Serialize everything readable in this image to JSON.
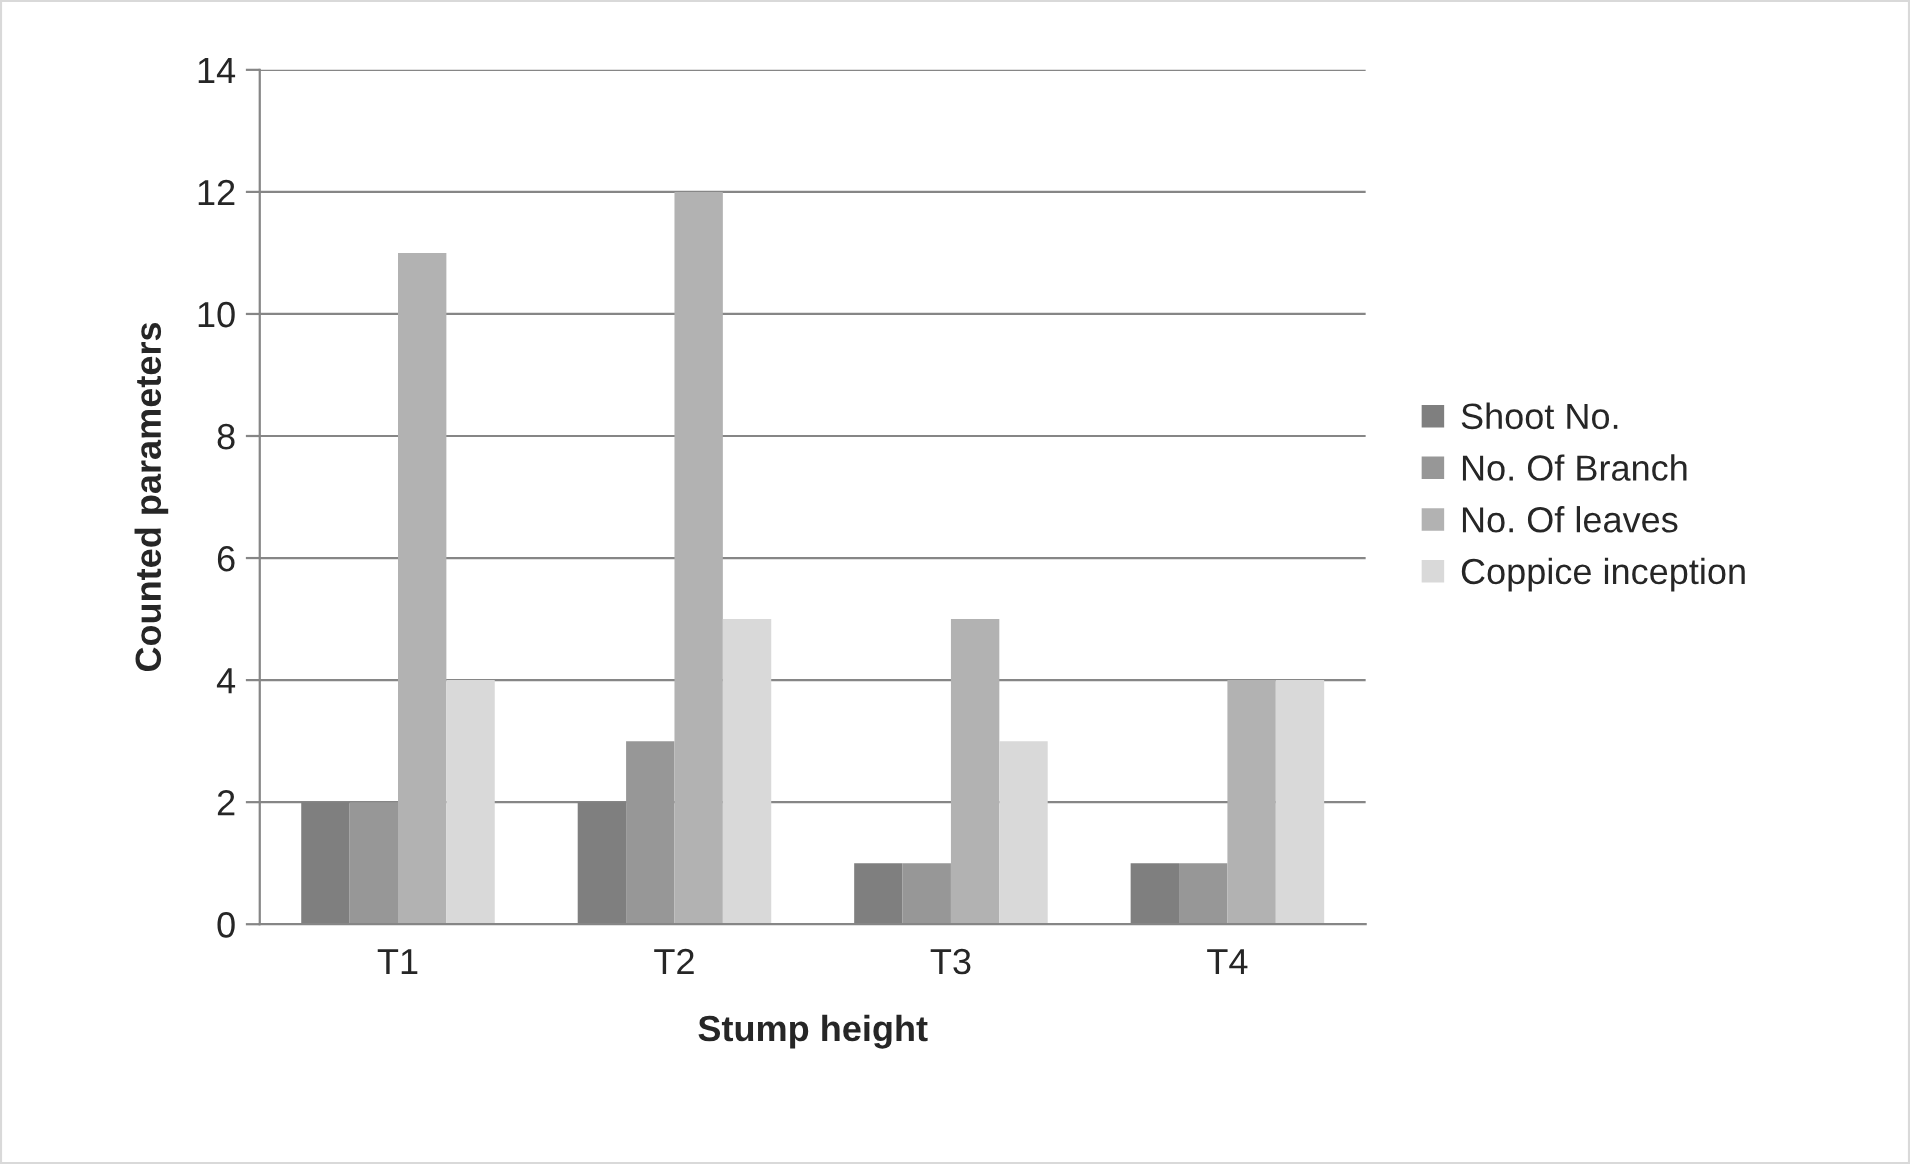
{
  "chart_data": {
    "type": "bar",
    "xlabel": "Stump height",
    "ylabel": "Counted parameters",
    "categories": [
      "T1",
      "T2",
      "T3",
      "T4"
    ],
    "series": [
      {
        "name": "Shoot No.",
        "color": "#7f7f7f",
        "values": [
          2,
          2,
          1,
          1
        ]
      },
      {
        "name": "No. Of Branch",
        "color": "#979797",
        "values": [
          2,
          3,
          1,
          1
        ]
      },
      {
        "name": "No. Of leaves",
        "color": "#b2b2b2",
        "values": [
          11,
          12,
          5,
          4
        ]
      },
      {
        "name": "Coppice inception",
        "color": "#d9d9d9",
        "values": [
          4,
          5,
          3,
          4
        ]
      }
    ],
    "ylim": [
      0,
      14
    ],
    "yticks": [
      0,
      2,
      4,
      6,
      8,
      10,
      12,
      14
    ],
    "grid": "y",
    "legend": "right"
  }
}
